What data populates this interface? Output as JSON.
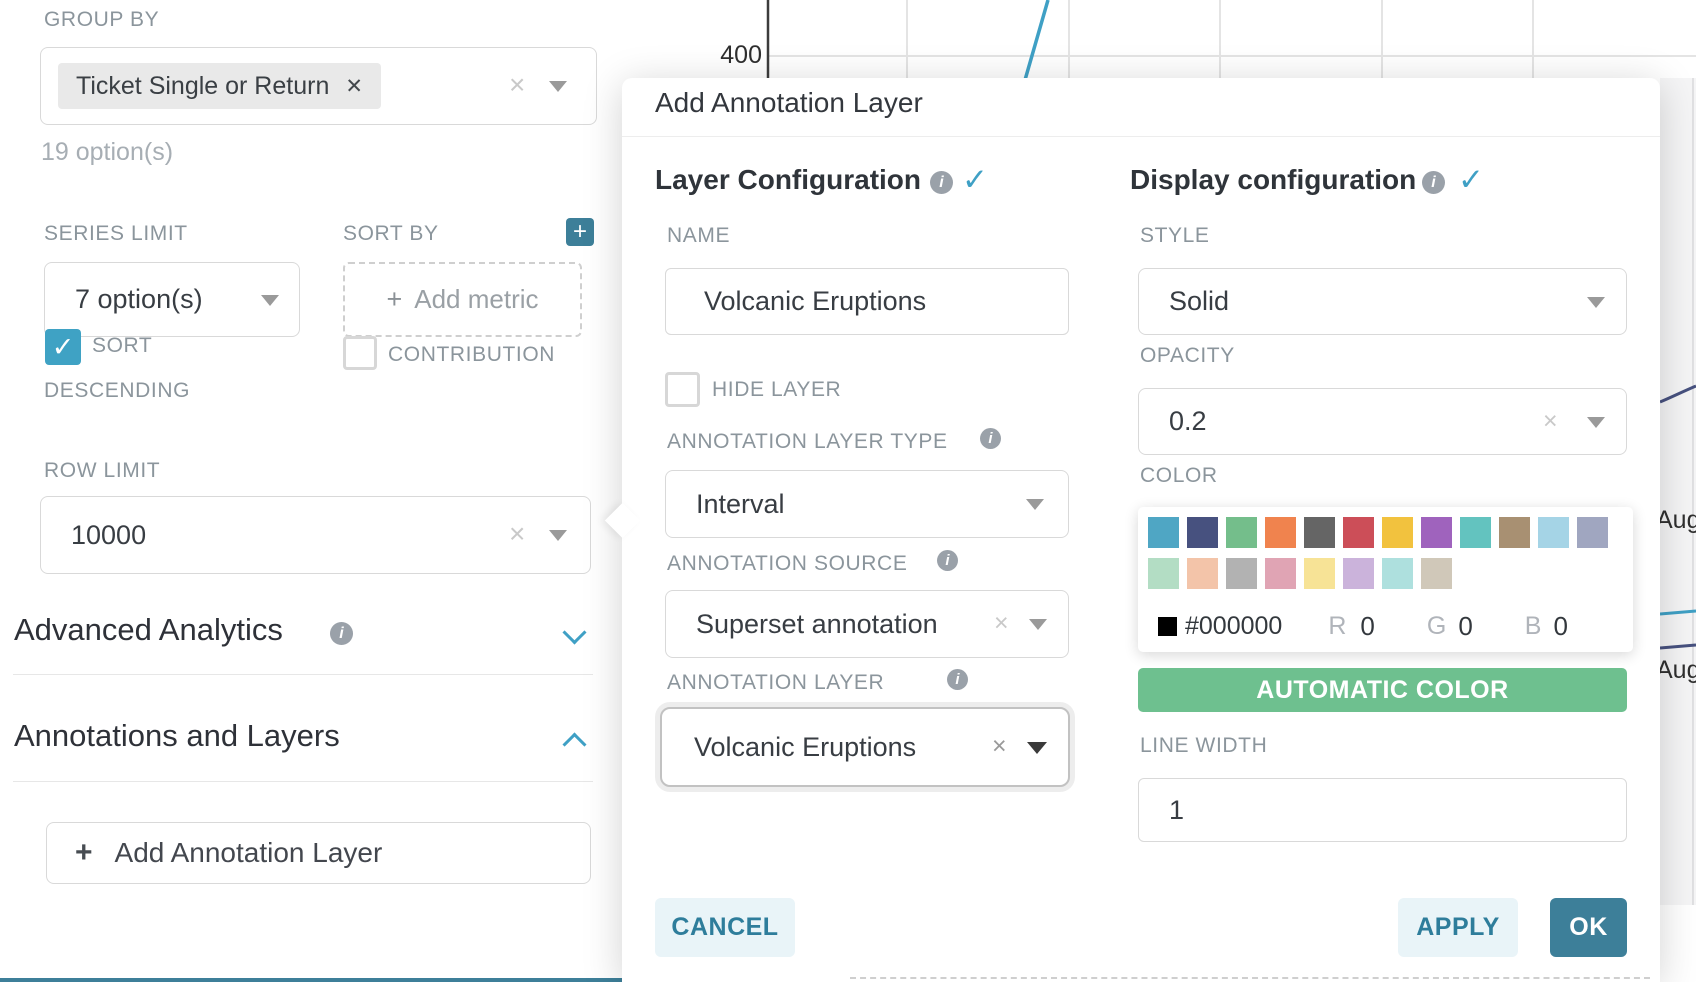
{
  "chart": {
    "y_axis_tick": "400",
    "x_tick_labels": [
      "Aug",
      "Aug"
    ],
    "blue_line_color": "#3FA0C5",
    "navy_line_color": "#47517F"
  },
  "left_panel": {
    "group_by": {
      "label": "GROUP BY",
      "selected_tag": "Ticket Single or Return",
      "hint": "19 option(s)"
    },
    "series_limit": {
      "label": "SERIES LIMIT",
      "value": "7 option(s)"
    },
    "sort_by": {
      "label": "SORT BY",
      "placeholder": "Add metric"
    },
    "sort_descending": {
      "label_line1": "SORT",
      "label_line2": "DESCENDING",
      "checked": true,
      "check_glyph": "✓"
    },
    "contribution": {
      "label": "CONTRIBUTION",
      "checked": false
    },
    "row_limit": {
      "label": "ROW LIMIT",
      "value": "10000"
    },
    "advanced_analytics": {
      "label": "Advanced Analytics"
    },
    "annotations_and_layers": {
      "label": "Annotations and Layers"
    },
    "add_annotation_layer": {
      "plus_glyph": "+",
      "label": "Add Annotation Layer"
    }
  },
  "modal": {
    "title": "Add Annotation Layer",
    "layer_configuration": {
      "heading": "Layer Configuration",
      "name": {
        "label": "NAME",
        "value": "Volcanic Eruptions"
      },
      "hide_layer": {
        "label": "HIDE LAYER",
        "checked": false
      },
      "annotation_layer_type": {
        "label": "ANNOTATION LAYER TYPE",
        "value": "Interval"
      },
      "annotation_source": {
        "label": "ANNOTATION SOURCE",
        "value": "Superset annotation"
      },
      "annotation_layer": {
        "label": "ANNOTATION LAYER",
        "value": "Volcanic Eruptions"
      }
    },
    "display_configuration": {
      "heading": "Display configuration",
      "style": {
        "label": "STYLE",
        "value": "Solid"
      },
      "opacity": {
        "label": "OPACITY",
        "value": "0.2"
      },
      "color": {
        "label": "COLOR",
        "palette_row1": [
          "#4FA6C4",
          "#47517F",
          "#74BE8B",
          "#F0834E",
          "#656565",
          "#CC4E58",
          "#F2C23E",
          "#9F63BD",
          "#63C3BF",
          "#A89072",
          "#A5D4E6",
          "#A0A6C0"
        ],
        "palette_row2": [
          "#B3DDC4",
          "#F3C4A9",
          "#B2B2B2",
          "#E0A4B4",
          "#F7E396",
          "#CBB3DB",
          "#AEE0DE",
          "#D0C8B9"
        ],
        "current": {
          "hex": "#000000",
          "r_label": "R",
          "r": "0",
          "g_label": "G",
          "g": "0",
          "b_label": "B",
          "b": "0"
        }
      },
      "automatic_color_button": "AUTOMATIC COLOR",
      "line_width": {
        "label": "LINE WIDTH",
        "value": "1"
      }
    },
    "footer": {
      "cancel": "CANCEL",
      "apply": "APPLY",
      "ok": "OK"
    }
  },
  "colors": {
    "accent_teal": "#3FA0C5",
    "button_teal": "#3D7F99",
    "button_green": "#6EC08F",
    "light_button_bg": "#E9F4F8",
    "light_button_text": "#2E7D9B"
  }
}
